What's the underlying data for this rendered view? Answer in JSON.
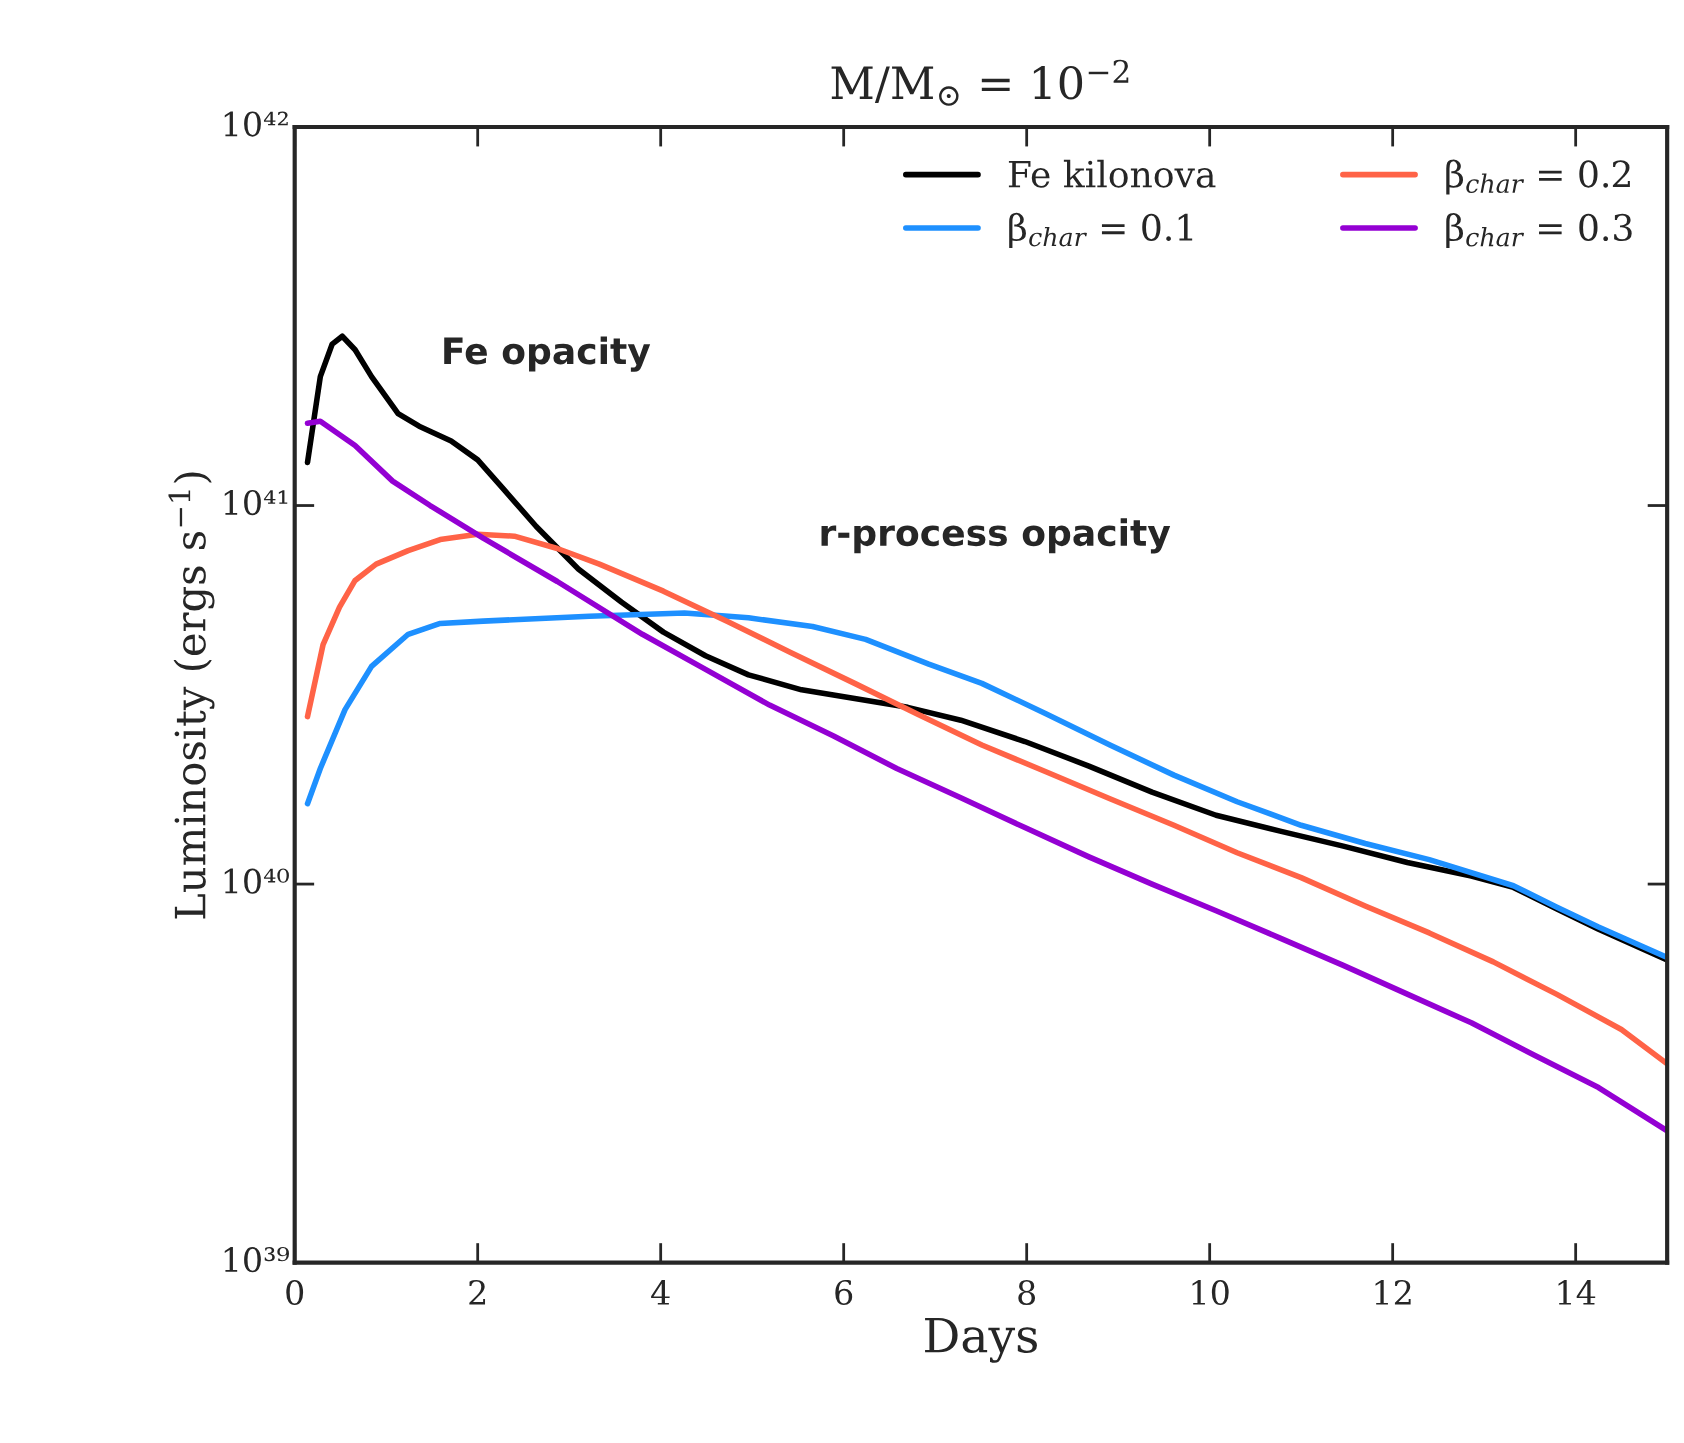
{
  "chart_data": {
    "type": "line",
    "title": "M/M$_{⊙}$ = 10$^{−2}$",
    "xlabel": "Days",
    "ylabel": "Luminosity (ergs s$^{−1}$)",
    "log": "y",
    "xlim": [
      0,
      15
    ],
    "xticks": [
      0,
      2,
      4,
      6,
      8,
      10,
      12,
      14
    ],
    "ylim": [
      1e+39,
      1e+42
    ],
    "yticks": [
      {
        "value": 1e+39,
        "label": "10³⁹"
      },
      {
        "value": 1e+40,
        "label": "10⁴⁰"
      },
      {
        "value": 1e+41,
        "label": "10⁴¹"
      },
      {
        "value": 1e+42,
        "label": "10⁴²"
      }
    ],
    "grid": false,
    "legend": "top right",
    "marker": "none",
    "line_style": "solid",
    "annotations": [
      "Fe opacity",
      "r-process opacity"
    ],
    "series": [
      {
        "name": "Fe kilonova",
        "color": "#000000",
        "x": [
          0.14,
          0.28,
          0.41,
          0.52,
          0.66,
          0.84,
          1.13,
          1.36,
          1.71,
          2.0,
          2.29,
          2.64,
          3.1,
          3.57,
          4.03,
          4.49,
          4.96,
          5.54,
          6.12,
          6.7,
          7.28,
          7.98,
          8.68,
          9.37,
          10.07,
          10.77,
          11.46,
          12.16,
          12.86,
          13.32,
          13.79,
          14.25,
          15.0
        ],
        "values": [
          1.3e+41,
          2.19e+41,
          2.67e+41,
          2.8e+41,
          2.58e+41,
          2.19e+41,
          1.75e+41,
          1.62e+41,
          1.48e+41,
          1.32e+41,
          1.1e+41,
          8.8e+40,
          6.8e+40,
          5.56e+40,
          4.63e+40,
          4.01e+40,
          3.57e+40,
          3.26e+40,
          3.09e+40,
          2.93e+40,
          2.71e+40,
          2.38e+40,
          2.05e+40,
          1.75e+40,
          1.52e+40,
          1.38e+40,
          1.26e+40,
          1.14e+40,
          1.05e+40,
          9.8e+39,
          8.6e+39,
          7.6e+39,
          6.3e+39
        ]
      },
      {
        "name": "β$_{char}$ = 0.1",
        "color": "#1e90ff",
        "x": [
          0.14,
          0.28,
          0.55,
          0.84,
          1.24,
          1.59,
          2.06,
          3.22,
          4.26,
          4.96,
          5.66,
          6.24,
          6.93,
          7.51,
          8.21,
          8.91,
          9.61,
          10.3,
          11.0,
          11.7,
          12.4,
          13.32,
          13.79,
          14.25,
          15.0
        ],
        "values": [
          1.63e+40,
          2.02e+40,
          2.89e+40,
          3.76e+40,
          4.57e+40,
          4.88e+40,
          4.95e+40,
          5.1e+40,
          5.2e+40,
          5.05e+40,
          4.79e+40,
          4.43e+40,
          3.81e+40,
          3.39e+40,
          2.82e+40,
          2.33e+40,
          1.94e+40,
          1.65e+40,
          1.43e+40,
          1.28e+40,
          1.16e+40,
          9.9e+39,
          8.7e+39,
          7.7e+39,
          6.4e+39
        ]
      },
      {
        "name": "β$_{char}$ = 0.2",
        "color": "#ff6347",
        "x": [
          0.14,
          0.31,
          0.49,
          0.66,
          0.89,
          1.24,
          1.59,
          2.0,
          2.4,
          2.87,
          3.33,
          4.03,
          4.73,
          5.42,
          6.12,
          6.82,
          7.51,
          8.21,
          8.91,
          9.61,
          10.3,
          11.0,
          11.7,
          12.4,
          13.1,
          13.79,
          14.5,
          15.0
        ],
        "values": [
          2.77e+40,
          4.29e+40,
          5.39e+40,
          6.34e+40,
          7e+40,
          7.6e+40,
          8.13e+40,
          8.4e+40,
          8.3e+40,
          7.7e+40,
          7e+40,
          5.94e+40,
          4.94e+40,
          4.09e+40,
          3.39e+40,
          2.8e+40,
          2.33e+40,
          1.98e+40,
          1.68e+40,
          1.43e+40,
          1.21e+40,
          1.04e+40,
          8.75e+39,
          7.43e+39,
          6.23e+39,
          5.12e+39,
          4.13e+39,
          3.35e+39
        ]
      },
      {
        "name": "β$_{char}$ = 0.3",
        "color": "#9400d3",
        "x": [
          0.14,
          0.28,
          0.66,
          1.07,
          1.48,
          2.06,
          2.87,
          3.8,
          4.49,
          5.19,
          5.89,
          6.58,
          7.28,
          7.98,
          8.68,
          9.37,
          10.07,
          10.77,
          11.46,
          12.16,
          12.86,
          13.55,
          14.25,
          15.0
        ],
        "values": [
          1.65e+41,
          1.67e+41,
          1.44e+41,
          1.16e+41,
          1e+41,
          8.2e+40,
          6.3e+40,
          4.57e+40,
          3.69e+40,
          2.97e+40,
          2.46e+40,
          2.02e+40,
          1.69e+40,
          1.41e+40,
          1.18e+40,
          1e+40,
          8.5e+39,
          7.2e+39,
          6.1e+39,
          5.12e+39,
          4.3e+39,
          3.53e+39,
          2.9e+39,
          2.23e+39
        ]
      }
    ]
  }
}
